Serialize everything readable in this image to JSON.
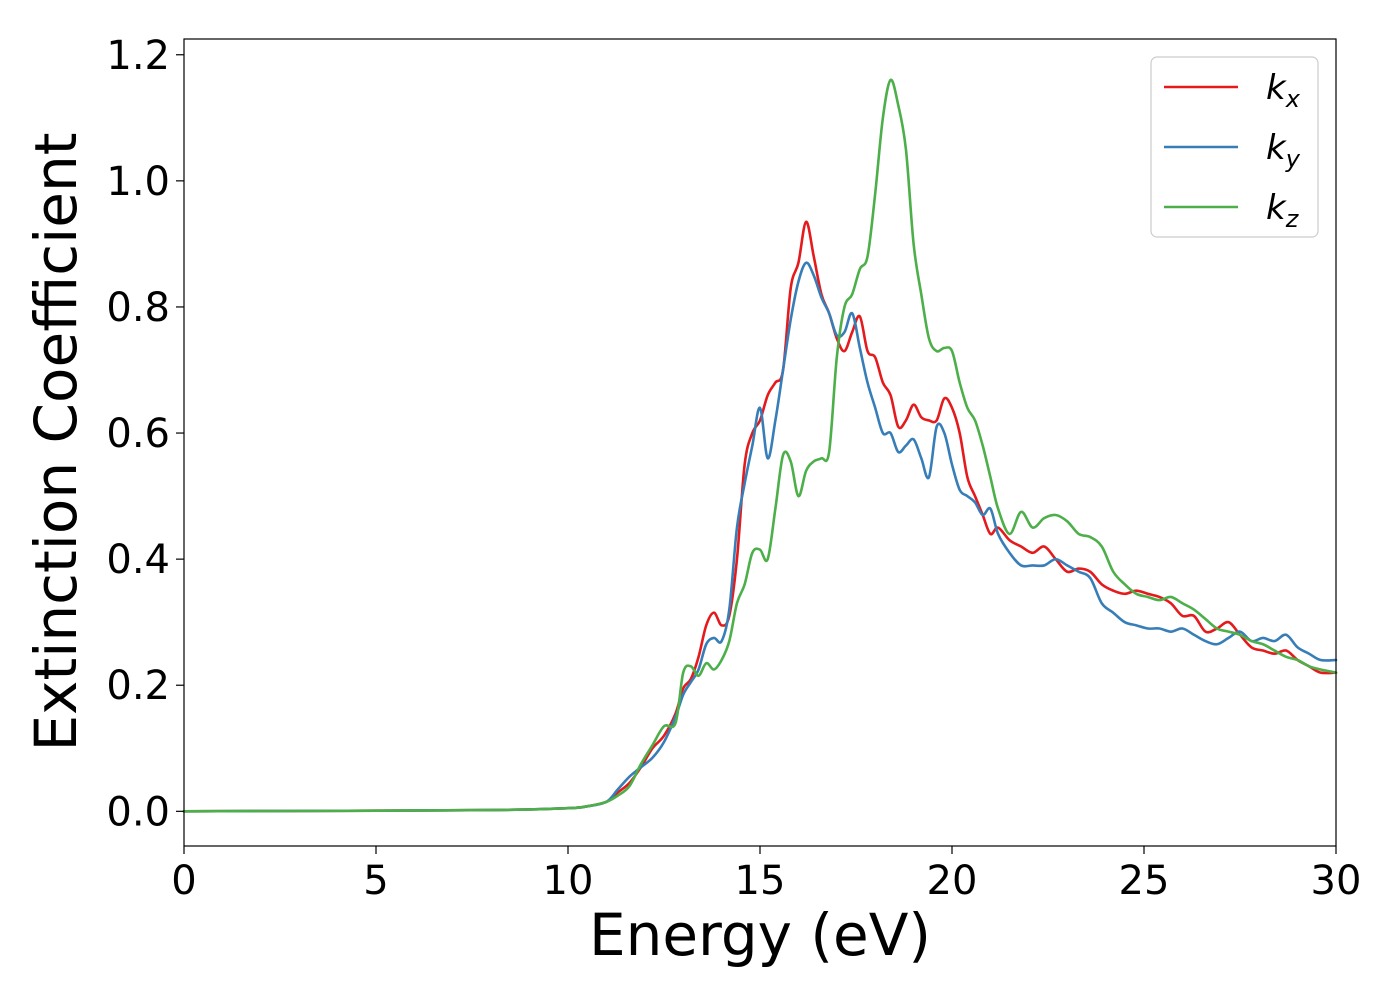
{
  "chart_data": {
    "type": "line",
    "title": "",
    "xlabel": "Energy (eV)",
    "ylabel": "Extinction Coefficient",
    "xlim": [
      0,
      30
    ],
    "ylim": [
      -0.055,
      1.225
    ],
    "xticks": [
      0,
      5,
      10,
      15,
      20,
      25,
      30
    ],
    "xtick_labels": [
      "0",
      "5",
      "10",
      "15",
      "20",
      "25",
      "30"
    ],
    "yticks": [
      0.0,
      0.2,
      0.4,
      0.6,
      0.8,
      1.0,
      1.2
    ],
    "ytick_labels": [
      "0.0",
      "0.2",
      "0.4",
      "0.6",
      "0.8",
      "1.0",
      "1.2"
    ],
    "grid": false,
    "legend_position": "top-right",
    "series": [
      {
        "name": "k_x",
        "legend_base": "k",
        "legend_sub": "x",
        "color": "#e41a1c",
        "x": [
          0,
          5,
          8,
          10,
          10.5,
          11,
          11.3,
          11.6,
          11.9,
          12.2,
          12.5,
          12.8,
          13.0,
          13.2,
          13.4,
          13.6,
          13.8,
          14.0,
          14.2,
          14.4,
          14.6,
          14.8,
          15.0,
          15.2,
          15.4,
          15.6,
          15.8,
          16.0,
          16.2,
          16.4,
          16.6,
          16.8,
          17.0,
          17.2,
          17.4,
          17.6,
          17.8,
          18.0,
          18.2,
          18.4,
          18.6,
          18.8,
          19.0,
          19.2,
          19.4,
          19.6,
          19.8,
          20.0,
          20.2,
          20.4,
          20.6,
          20.8,
          21.0,
          21.2,
          21.5,
          21.8,
          22.1,
          22.4,
          22.7,
          23.0,
          23.3,
          23.6,
          23.9,
          24.2,
          24.5,
          24.8,
          25.1,
          25.4,
          25.7,
          26.0,
          26.3,
          26.6,
          26.9,
          27.2,
          27.5,
          27.8,
          28.1,
          28.4,
          28.7,
          29.0,
          29.3,
          29.6,
          30.0
        ],
        "y": [
          0.0,
          0.001,
          0.002,
          0.005,
          0.008,
          0.015,
          0.03,
          0.045,
          0.07,
          0.1,
          0.12,
          0.155,
          0.195,
          0.21,
          0.245,
          0.295,
          0.315,
          0.295,
          0.31,
          0.4,
          0.55,
          0.6,
          0.62,
          0.66,
          0.68,
          0.7,
          0.83,
          0.87,
          0.935,
          0.88,
          0.82,
          0.79,
          0.75,
          0.73,
          0.76,
          0.785,
          0.73,
          0.72,
          0.68,
          0.66,
          0.61,
          0.62,
          0.645,
          0.625,
          0.62,
          0.62,
          0.655,
          0.64,
          0.6,
          0.53,
          0.5,
          0.47,
          0.44,
          0.45,
          0.43,
          0.42,
          0.41,
          0.42,
          0.4,
          0.38,
          0.385,
          0.38,
          0.36,
          0.35,
          0.345,
          0.35,
          0.345,
          0.34,
          0.33,
          0.31,
          0.31,
          0.285,
          0.29,
          0.3,
          0.28,
          0.26,
          0.255,
          0.25,
          0.255,
          0.24,
          0.23,
          0.22,
          0.22
        ]
      },
      {
        "name": "k_y",
        "legend_base": "k",
        "legend_sub": "y",
        "color": "#377eb8",
        "x": [
          0,
          5,
          8,
          10,
          10.5,
          11,
          11.3,
          11.6,
          11.9,
          12.2,
          12.5,
          12.8,
          13.0,
          13.2,
          13.4,
          13.6,
          13.8,
          14.0,
          14.2,
          14.4,
          14.6,
          14.8,
          15.0,
          15.2,
          15.4,
          15.6,
          15.8,
          16.0,
          16.2,
          16.4,
          16.6,
          16.8,
          17.0,
          17.2,
          17.4,
          17.6,
          17.8,
          18.0,
          18.2,
          18.4,
          18.6,
          18.8,
          19.0,
          19.2,
          19.4,
          19.6,
          19.8,
          20.0,
          20.2,
          20.4,
          20.6,
          20.8,
          21.0,
          21.2,
          21.5,
          21.8,
          22.1,
          22.4,
          22.7,
          23.0,
          23.3,
          23.6,
          23.9,
          24.2,
          24.5,
          24.8,
          25.1,
          25.4,
          25.7,
          26.0,
          26.3,
          26.6,
          26.9,
          27.2,
          27.5,
          27.8,
          28.1,
          28.4,
          28.7,
          29.0,
          29.3,
          29.6,
          30.0
        ],
        "y": [
          0.0,
          0.001,
          0.002,
          0.005,
          0.008,
          0.015,
          0.035,
          0.055,
          0.07,
          0.085,
          0.11,
          0.15,
          0.185,
          0.205,
          0.225,
          0.265,
          0.275,
          0.27,
          0.32,
          0.45,
          0.52,
          0.58,
          0.64,
          0.56,
          0.62,
          0.7,
          0.78,
          0.84,
          0.87,
          0.85,
          0.815,
          0.79,
          0.755,
          0.76,
          0.79,
          0.735,
          0.68,
          0.64,
          0.6,
          0.6,
          0.57,
          0.58,
          0.59,
          0.56,
          0.53,
          0.61,
          0.6,
          0.55,
          0.51,
          0.5,
          0.49,
          0.47,
          0.48,
          0.44,
          0.41,
          0.39,
          0.39,
          0.39,
          0.4,
          0.39,
          0.38,
          0.37,
          0.33,
          0.315,
          0.3,
          0.295,
          0.29,
          0.29,
          0.285,
          0.29,
          0.28,
          0.27,
          0.265,
          0.275,
          0.285,
          0.27,
          0.275,
          0.27,
          0.28,
          0.26,
          0.25,
          0.24,
          0.24
        ]
      },
      {
        "name": "k_z",
        "legend_base": "k",
        "legend_sub": "z",
        "color": "#4daf4a",
        "x": [
          0,
          5,
          8,
          10,
          10.5,
          11,
          11.3,
          11.6,
          11.9,
          12.2,
          12.5,
          12.8,
          13.0,
          13.2,
          13.4,
          13.6,
          13.8,
          14.0,
          14.2,
          14.4,
          14.6,
          14.8,
          15.0,
          15.2,
          15.4,
          15.6,
          15.8,
          16.0,
          16.2,
          16.4,
          16.6,
          16.8,
          17.0,
          17.2,
          17.4,
          17.6,
          17.8,
          18.0,
          18.2,
          18.4,
          18.6,
          18.8,
          19.0,
          19.2,
          19.4,
          19.6,
          19.8,
          20.0,
          20.2,
          20.4,
          20.6,
          20.8,
          21.0,
          21.2,
          21.5,
          21.8,
          22.1,
          22.4,
          22.7,
          23.0,
          23.3,
          23.6,
          23.9,
          24.2,
          24.5,
          24.8,
          25.1,
          25.4,
          25.7,
          26.0,
          26.3,
          26.6,
          26.9,
          27.2,
          27.5,
          27.8,
          28.1,
          28.4,
          28.7,
          29.0,
          29.3,
          29.6,
          30.0
        ],
        "y": [
          0.0,
          0.001,
          0.002,
          0.005,
          0.008,
          0.015,
          0.025,
          0.04,
          0.075,
          0.105,
          0.135,
          0.14,
          0.22,
          0.23,
          0.215,
          0.235,
          0.225,
          0.24,
          0.27,
          0.33,
          0.36,
          0.41,
          0.415,
          0.4,
          0.48,
          0.565,
          0.555,
          0.5,
          0.54,
          0.555,
          0.56,
          0.57,
          0.72,
          0.8,
          0.82,
          0.86,
          0.88,
          0.98,
          1.1,
          1.16,
          1.12,
          1.05,
          0.9,
          0.82,
          0.75,
          0.73,
          0.735,
          0.73,
          0.68,
          0.64,
          0.62,
          0.58,
          0.53,
          0.48,
          0.44,
          0.475,
          0.45,
          0.465,
          0.47,
          0.46,
          0.44,
          0.435,
          0.42,
          0.38,
          0.36,
          0.345,
          0.34,
          0.335,
          0.34,
          0.33,
          0.32,
          0.305,
          0.29,
          0.285,
          0.28,
          0.27,
          0.265,
          0.255,
          0.245,
          0.24,
          0.23,
          0.225,
          0.22
        ]
      }
    ]
  }
}
